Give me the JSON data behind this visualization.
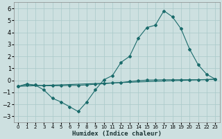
{
  "xlabel": "Humidex (Indice chaleur)",
  "ylabel": "",
  "background_color": "#cde0e0",
  "grid_color": "#a8c8c8",
  "line_color": "#1a6b6b",
  "xlim": [
    -0.5,
    23.5
  ],
  "ylim": [
    -3.5,
    6.5
  ],
  "xticks": [
    0,
    1,
    2,
    3,
    4,
    5,
    6,
    7,
    8,
    9,
    10,
    11,
    12,
    13,
    14,
    15,
    16,
    17,
    18,
    19,
    20,
    21,
    22,
    23
  ],
  "yticks": [
    -3,
    -2,
    -1,
    0,
    1,
    2,
    3,
    4,
    5,
    6
  ],
  "line1_x": [
    0,
    1,
    2,
    3,
    4,
    5,
    6,
    7,
    8,
    9,
    10,
    11,
    12,
    13,
    14,
    15,
    16,
    17,
    18,
    19,
    20,
    21,
    22,
    23
  ],
  "line1_y": [
    -0.5,
    -0.3,
    -0.4,
    -0.8,
    -1.5,
    -1.8,
    -2.2,
    -2.6,
    -1.8,
    -0.8,
    0.05,
    0.4,
    1.5,
    2.0,
    3.5,
    4.4,
    4.6,
    5.8,
    5.3,
    4.3,
    2.6,
    1.3,
    0.5,
    0.1
  ],
  "line2_x": [
    0,
    23
  ],
  "line2_y": [
    -0.5,
    0.1
  ],
  "line3_x": [
    0,
    1,
    2,
    3,
    4,
    5,
    6,
    7,
    8,
    9,
    10,
    11,
    12,
    13,
    14,
    15,
    16,
    17,
    18,
    19,
    20,
    21,
    22,
    23
  ],
  "line3_y": [
    -0.5,
    -0.35,
    -0.4,
    -0.45,
    -0.45,
    -0.45,
    -0.42,
    -0.42,
    -0.38,
    -0.32,
    -0.28,
    -0.22,
    -0.18,
    -0.1,
    -0.03,
    0.02,
    0.03,
    0.05,
    0.05,
    0.05,
    0.05,
    0.05,
    0.05,
    0.1
  ]
}
